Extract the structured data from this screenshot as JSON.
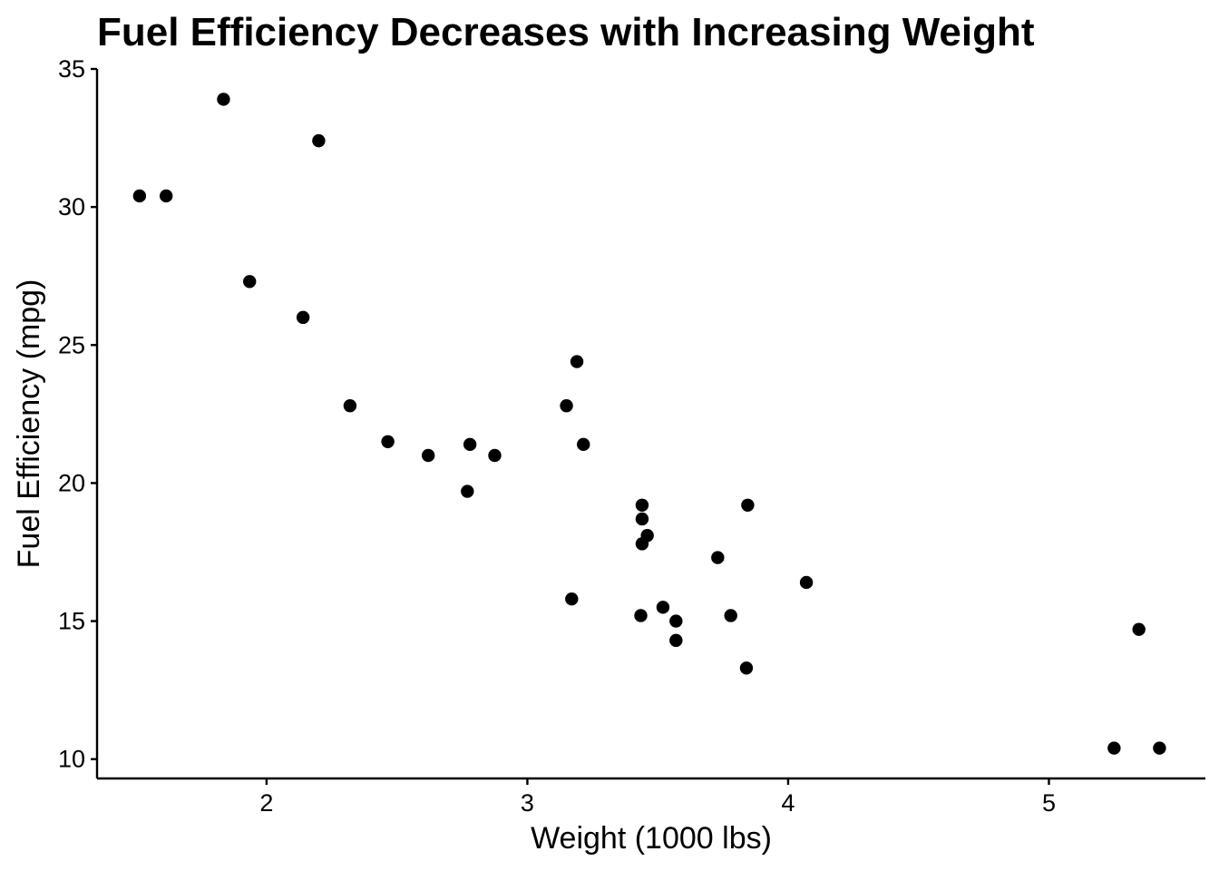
{
  "chart_data": {
    "type": "scatter",
    "title": "Fuel Efficiency Decreases with Increasing Weight",
    "xlabel": "Weight (1000 lbs)",
    "ylabel": "Fuel Efficiency (mpg)",
    "xlim": [
      1.35,
      5.6
    ],
    "ylim": [
      9.3,
      35.0
    ],
    "x_ticks": [
      2,
      3,
      4,
      5
    ],
    "x_tick_labels": [
      "2",
      "3",
      "4",
      "5"
    ],
    "y_ticks": [
      10,
      15,
      20,
      25,
      30,
      35
    ],
    "y_tick_labels": [
      "10",
      "15",
      "20",
      "25",
      "30",
      "35"
    ],
    "grid": false,
    "legend": "none",
    "point_color": "#000000",
    "series": [
      {
        "points": [
          [
            1.835,
            33.9
          ],
          [
            2.2,
            32.4
          ],
          [
            1.513,
            30.4
          ],
          [
            1.615,
            30.4
          ],
          [
            1.935,
            27.3
          ],
          [
            2.14,
            26.0
          ],
          [
            3.19,
            24.4
          ],
          [
            2.32,
            22.8
          ],
          [
            3.15,
            22.8
          ],
          [
            2.465,
            21.5
          ],
          [
            2.78,
            21.4
          ],
          [
            3.215,
            21.4
          ],
          [
            2.62,
            21.0
          ],
          [
            2.875,
            21.0
          ],
          [
            2.77,
            19.7
          ],
          [
            3.44,
            19.2
          ],
          [
            3.845,
            19.2
          ],
          [
            3.44,
            18.7
          ],
          [
            3.46,
            18.1
          ],
          [
            3.44,
            17.8
          ],
          [
            3.73,
            17.3
          ],
          [
            4.07,
            16.4
          ],
          [
            3.17,
            15.8
          ],
          [
            3.52,
            15.5
          ],
          [
            3.435,
            15.2
          ],
          [
            3.78,
            15.2
          ],
          [
            3.57,
            15.0
          ],
          [
            5.345,
            14.7
          ],
          [
            3.57,
            14.3
          ],
          [
            3.84,
            13.3
          ],
          [
            5.25,
            10.4
          ],
          [
            5.424,
            10.4
          ]
        ]
      }
    ]
  }
}
